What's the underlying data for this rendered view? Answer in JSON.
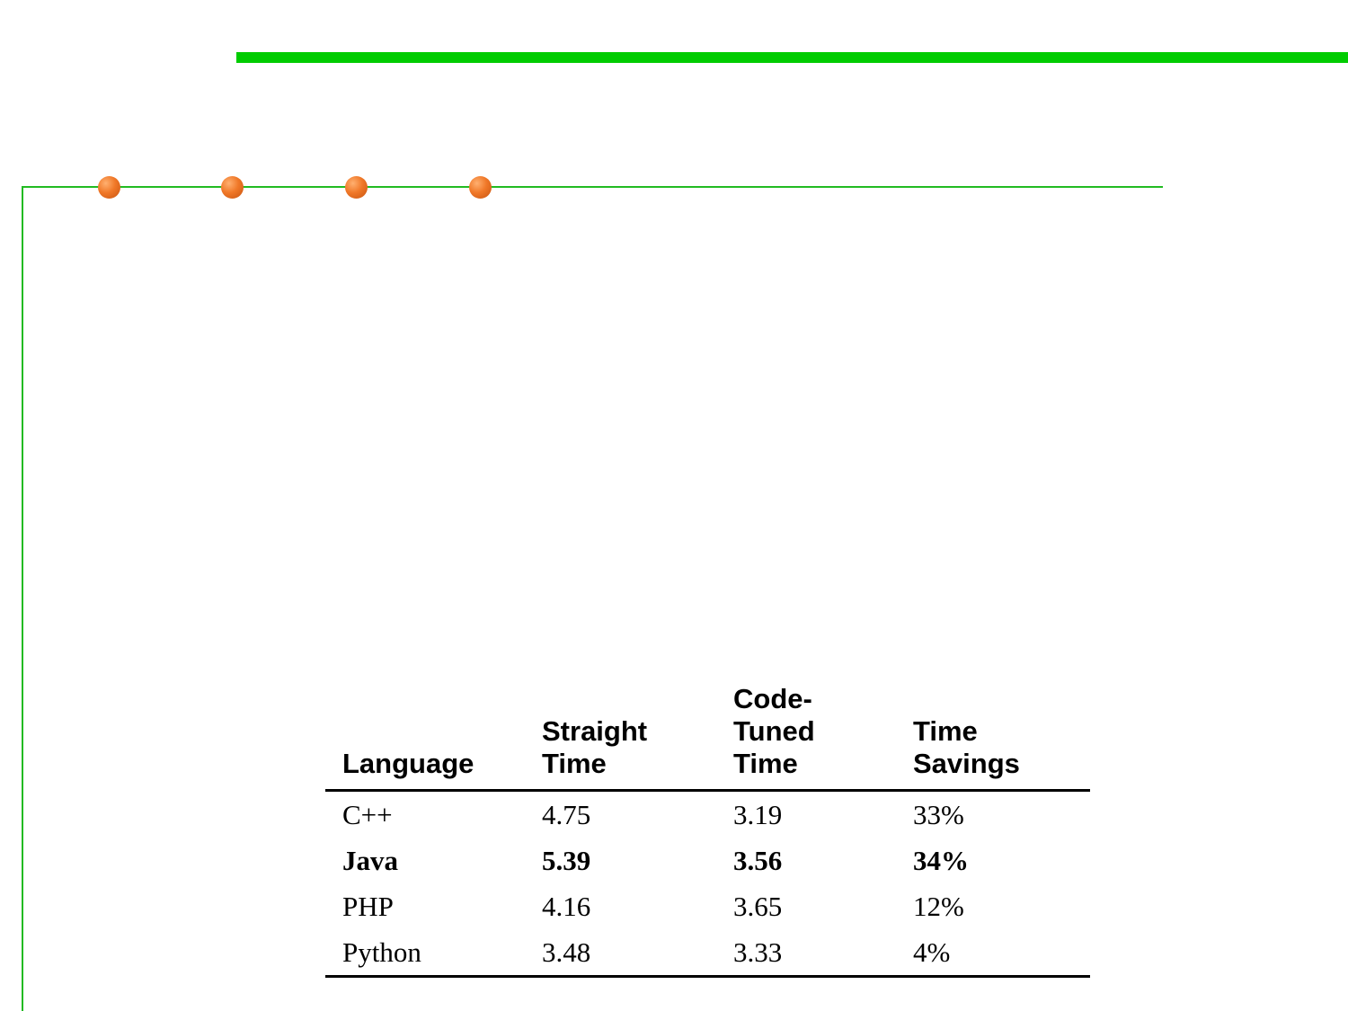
{
  "colors": {
    "top_bar": "#00cc00",
    "rules": "#22bb22",
    "bullet": "#f07828"
  },
  "decorations": {
    "bullet_count": 4
  },
  "table": {
    "headers": [
      [
        "Language"
      ],
      [
        "Straight",
        "Time"
      ],
      [
        "Code-",
        "Tuned",
        "Time"
      ],
      [
        "Time",
        "Savings"
      ]
    ],
    "rows": [
      {
        "language": "C++",
        "straight": "4.75",
        "tuned": "3.19",
        "savings": "33%",
        "bold": false
      },
      {
        "language": "Java",
        "straight": "5.39",
        "tuned": "3.56",
        "savings": "34%",
        "bold": true
      },
      {
        "language": "PHP",
        "straight": "4.16",
        "tuned": "3.65",
        "savings": "12%",
        "bold": false
      },
      {
        "language": "Python",
        "straight": "3.48",
        "tuned": "3.33",
        "savings": "4%",
        "bold": false
      }
    ]
  }
}
